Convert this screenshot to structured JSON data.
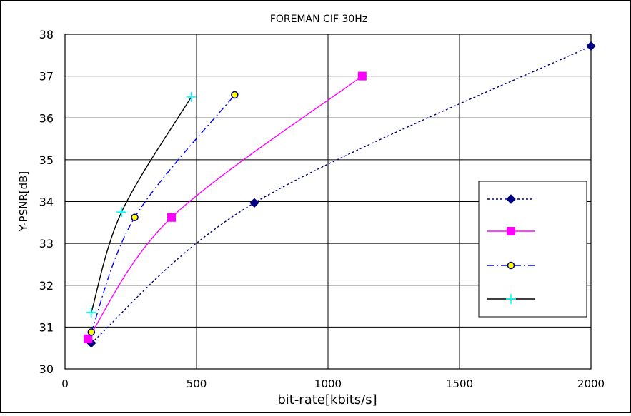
{
  "chart_data": {
    "type": "line",
    "title": "FOREMAN CIF 30Hz",
    "xlabel": "bit-rate[kbits/s]",
    "ylabel": "Y-PSNR[dB]",
    "xlim": [
      0,
      2000
    ],
    "ylim": [
      30,
      38
    ],
    "xticks": [
      0,
      500,
      1000,
      1500,
      2000
    ],
    "yticks": [
      30,
      31,
      32,
      33,
      34,
      35,
      36,
      37,
      38
    ],
    "grid": true,
    "legend_position": "right",
    "series": [
      {
        "color": "#000080",
        "line_style": "dotted",
        "marker": "diamond",
        "points": [
          [
            100,
            30.62
          ],
          [
            720,
            33.97
          ],
          [
            2000,
            37.72
          ]
        ]
      },
      {
        "color": "#ff00ff",
        "line_style": "solid",
        "marker": "square",
        "points": [
          [
            88,
            30.72
          ],
          [
            405,
            33.62
          ],
          [
            1130,
            37.0
          ]
        ]
      },
      {
        "color": "#0000ff",
        "marker_fill": "#ffff00",
        "line_style": "dash-dot",
        "marker": "circle",
        "points": [
          [
            100,
            30.88
          ],
          [
            265,
            33.62
          ],
          [
            645,
            36.55
          ]
        ]
      },
      {
        "color": "#000000",
        "marker_color": "#00ffff",
        "line_style": "solid",
        "marker": "plus",
        "points": [
          [
            100,
            31.35
          ],
          [
            215,
            33.75
          ],
          [
            480,
            36.5
          ]
        ]
      }
    ]
  }
}
